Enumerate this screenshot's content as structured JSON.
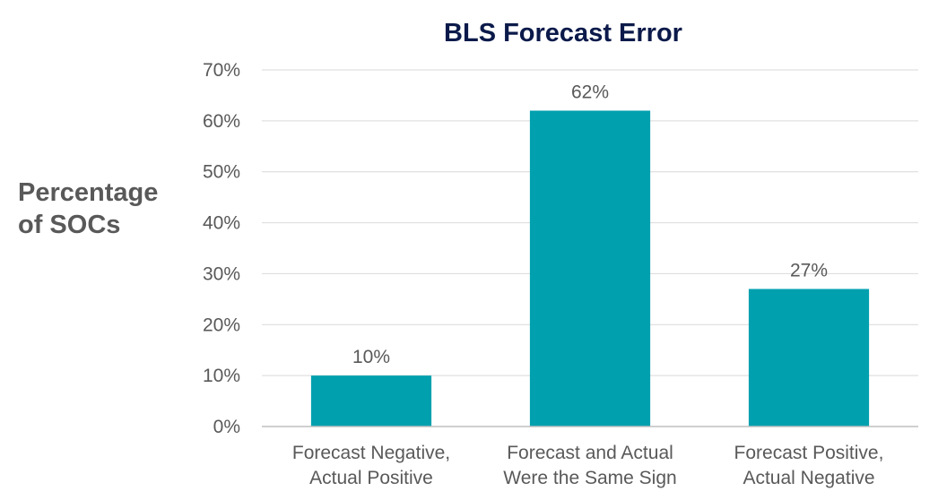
{
  "colors": {
    "bar": "#00A0AF",
    "title": "#0B1A4A",
    "text": "#595959",
    "grid": "#D9D9D9",
    "axis": "#BFBFBF"
  },
  "chart_data": {
    "type": "bar",
    "title": "BLS Forecast Error",
    "ylabel": [
      "Percentage",
      "of SOCs"
    ],
    "xlabel": "",
    "categories": [
      [
        "Forecast Negative,",
        "Actual Positive"
      ],
      [
        "Forecast and Actual",
        "Were the Same Sign"
      ],
      [
        "Forecast Positive,",
        "Actual Negative"
      ]
    ],
    "values": [
      10,
      62,
      27
    ],
    "data_labels": [
      "10%",
      "62%",
      "27%"
    ],
    "ylim": [
      0,
      70
    ],
    "yticks": [
      0,
      10,
      20,
      30,
      40,
      50,
      60,
      70
    ],
    "ytick_labels": [
      "0%",
      "10%",
      "20%",
      "30%",
      "40%",
      "50%",
      "60%",
      "70%"
    ],
    "grid": true,
    "legend": "none"
  }
}
